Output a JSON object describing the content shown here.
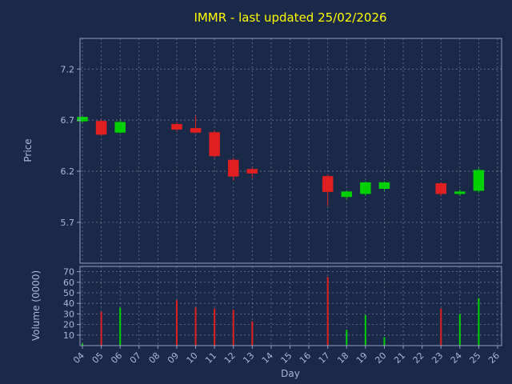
{
  "colors": {
    "background": "#1b2949",
    "title": "#ffff00",
    "axis_text": "#aab8d8",
    "grid": "#aab6cc",
    "spine": "#8fa0c4",
    "up": "#00d000",
    "down": "#e02020"
  },
  "chart_data": [
    {
      "type": "candlestick",
      "title": "IMMR - last updated 25/02/2026",
      "ylabel": "Price",
      "ylim": [
        5.3,
        7.5
      ],
      "yticks": [
        5.7,
        6.2,
        6.7,
        7.2
      ],
      "grid": true,
      "legend": "none",
      "categories": [
        "04",
        "05",
        "06",
        "07",
        "08",
        "09",
        "10",
        "11",
        "12",
        "13",
        "14",
        "15",
        "16",
        "17",
        "18",
        "19",
        "20",
        "21",
        "22",
        "23",
        "24",
        "25",
        "26"
      ],
      "candles": [
        {
          "day": "04",
          "open": 6.69,
          "high": 6.74,
          "low": 6.68,
          "close": 6.73
        },
        {
          "day": "05",
          "open": 6.69,
          "high": 6.71,
          "low": 6.55,
          "close": 6.56
        },
        {
          "day": "06",
          "open": 6.58,
          "high": 6.7,
          "low": 6.57,
          "close": 6.68
        },
        {
          "day": "09",
          "open": 6.66,
          "high": 6.68,
          "low": 6.59,
          "close": 6.61
        },
        {
          "day": "10",
          "open": 6.62,
          "high": 6.74,
          "low": 6.57,
          "close": 6.58
        },
        {
          "day": "11",
          "open": 6.58,
          "high": 6.6,
          "low": 6.33,
          "close": 6.35
        },
        {
          "day": "12",
          "open": 6.31,
          "high": 6.33,
          "low": 6.11,
          "close": 6.15
        },
        {
          "day": "13",
          "open": 6.22,
          "high": 6.24,
          "low": 6.14,
          "close": 6.18
        },
        {
          "day": "17",
          "open": 6.15,
          "high": 6.17,
          "low": 5.86,
          "close": 6.0
        },
        {
          "day": "18",
          "open": 5.95,
          "high": 6.01,
          "low": 5.93,
          "close": 6.0
        },
        {
          "day": "19",
          "open": 5.98,
          "high": 6.1,
          "low": 5.96,
          "close": 6.09
        },
        {
          "day": "20",
          "open": 6.03,
          "high": 6.1,
          "low": 6.01,
          "close": 6.09
        },
        {
          "day": "23",
          "open": 6.08,
          "high": 6.09,
          "low": 5.96,
          "close": 5.98
        },
        {
          "day": "24",
          "open": 5.98,
          "high": 6.02,
          "low": 5.96,
          "close": 6.0
        },
        {
          "day": "25",
          "open": 6.01,
          "high": 6.23,
          "low": 5.99,
          "close": 6.21
        }
      ]
    },
    {
      "type": "bar",
      "ylabel": "Volume (0000)",
      "xlabel": "Day",
      "ylim": [
        0,
        75
      ],
      "yticks": [
        10,
        20,
        30,
        40,
        50,
        60,
        70
      ],
      "grid": true,
      "bars": [
        {
          "day": "04",
          "value": 2
        },
        {
          "day": "05",
          "value": 32
        },
        {
          "day": "06",
          "value": 36
        },
        {
          "day": "09",
          "value": 43
        },
        {
          "day": "10",
          "value": 36
        },
        {
          "day": "11",
          "value": 35
        },
        {
          "day": "12",
          "value": 34
        },
        {
          "day": "13",
          "value": 23
        },
        {
          "day": "17",
          "value": 65
        },
        {
          "day": "18",
          "value": 15
        },
        {
          "day": "19",
          "value": 29
        },
        {
          "day": "20",
          "value": 8
        },
        {
          "day": "23",
          "value": 35
        },
        {
          "day": "24",
          "value": 30
        },
        {
          "day": "25",
          "value": 45
        }
      ]
    }
  ]
}
